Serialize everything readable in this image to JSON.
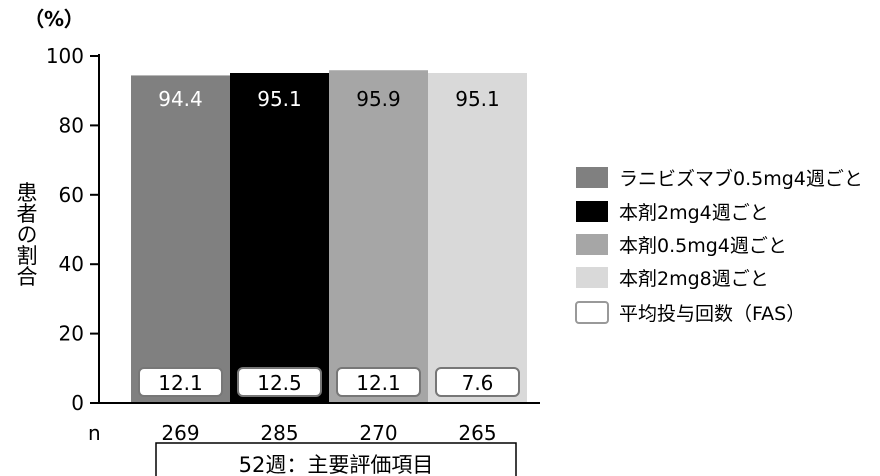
{
  "chart_data": {
    "type": "bar",
    "y_unit_label": "（%）",
    "ylabel": "患者の割合",
    "ylim": [
      0,
      100
    ],
    "y_ticks": [
      0,
      20,
      40,
      60,
      80,
      100
    ],
    "n_label": "n",
    "categories": [
      "ラニビズマブ0.5mg4週ごと",
      "本剤2mg4週ごと",
      "本剤0.5mg4週ごと",
      "本剤2mg8週ごと"
    ],
    "values": [
      94.4,
      95.1,
      95.9,
      95.1
    ],
    "value_labels": [
      "94.4",
      "95.1",
      "95.9",
      "95.1"
    ],
    "colors": [
      "#808080",
      "#000000",
      "#a6a6a6",
      "#d9d9d9"
    ],
    "value_label_colors": [
      "#ffffff",
      "#ffffff",
      "#000000",
      "#000000"
    ],
    "n_values": [
      "269",
      "285",
      "270",
      "265"
    ],
    "injections": [
      "12.1",
      "12.5",
      "12.1",
      "7.6"
    ],
    "legend": [
      {
        "label": "ラニビズマブ0.5mg4週ごと",
        "color": "#808080"
      },
      {
        "label": "本剤2mg4週ごと",
        "color": "#000000"
      },
      {
        "label": "本剤0.5mg4週ごと",
        "color": "#a6a6a6"
      },
      {
        "label": "本剤2mg8週ごと",
        "color": "#d9d9d9"
      },
      {
        "label": "平均投与回数（FAS）",
        "color": "#ffffff"
      }
    ],
    "legend_position": "right",
    "grid": false,
    "footer_label": "52週：主要評価項目"
  }
}
